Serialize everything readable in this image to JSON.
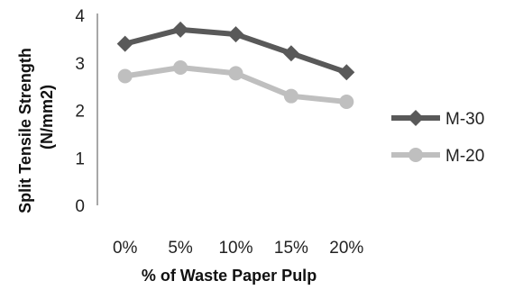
{
  "chart_data": {
    "type": "line",
    "categories": [
      "0%",
      "5%",
      "10%",
      "15%",
      "20%"
    ],
    "series": [
      {
        "name": "M-30",
        "values": [
          3.4,
          3.7,
          3.6,
          3.2,
          2.8
        ],
        "color": "#595959",
        "marker": "diamond"
      },
      {
        "name": "M-20",
        "values": [
          2.72,
          2.9,
          2.78,
          2.3,
          2.18
        ],
        "color": "#bfbfbf",
        "marker": "circle"
      }
    ],
    "xlabel": "% of Waste Paper Pulp",
    "ylabel": [
      "Split Tensile Strength",
      "(N/mm2)"
    ],
    "ylim": [
      0,
      4
    ],
    "yticks": [
      "0",
      "1",
      "2",
      "3",
      "4"
    ],
    "grid": false,
    "legend_position": "right"
  }
}
